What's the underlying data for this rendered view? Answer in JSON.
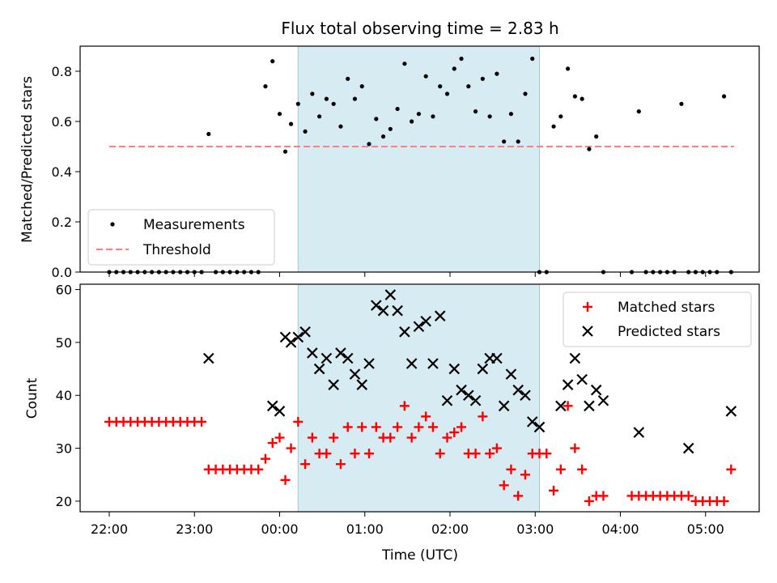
{
  "title": "Flux total observing time = 2.83 h",
  "colors": {
    "measurement": "#000000",
    "threshold": "#ff7f7f",
    "matched": "#ff0000",
    "predicted": "#000000",
    "shade": "#add8e6"
  },
  "chart_data": [
    {
      "type": "scatter",
      "ylabel": "Matched/Predicted stars",
      "ylim": [
        0,
        0.9
      ],
      "yticks": [
        "0.0",
        "0.2",
        "0.4",
        "0.6",
        "0.8"
      ],
      "legend": {
        "placement": "lower-left",
        "measurements": "Measurements",
        "threshold": "Threshold"
      },
      "threshold": {
        "value": 0.5,
        "x_start": "22:00",
        "x_end": "05:20"
      },
      "shaded_region": {
        "x_start": "00:13",
        "x_end": "03:03"
      },
      "series": [
        {
          "name": "Measurements",
          "x": [
            "22:00",
            "22:05",
            "22:10",
            "22:15",
            "22:20",
            "22:25",
            "22:30",
            "22:35",
            "22:40",
            "22:45",
            "22:50",
            "22:55",
            "23:00",
            "23:05",
            "23:10",
            "23:15",
            "23:20",
            "23:25",
            "23:30",
            "23:35",
            "23:40",
            "23:45",
            "23:50",
            "23:55",
            "00:00",
            "00:04",
            "00:08",
            "00:13",
            "00:18",
            "00:23",
            "00:28",
            "00:33",
            "00:38",
            "00:43",
            "00:48",
            "00:53",
            "00:58",
            "01:03",
            "01:08",
            "01:13",
            "01:18",
            "01:23",
            "01:28",
            "01:33",
            "01:38",
            "01:43",
            "01:48",
            "01:53",
            "01:58",
            "02:03",
            "02:08",
            "02:13",
            "02:18",
            "02:23",
            "02:28",
            "02:33",
            "02:38",
            "02:43",
            "02:48",
            "02:53",
            "02:58",
            "03:03",
            "03:08",
            "03:13",
            "03:18",
            "03:23",
            "03:28",
            "03:33",
            "03:38",
            "03:43",
            "03:48",
            "04:08",
            "04:13",
            "04:18",
            "04:23",
            "04:28",
            "04:33",
            "04:38",
            "04:43",
            "04:48",
            "04:53",
            "04:58",
            "05:03",
            "05:08",
            "05:13",
            "05:18"
          ],
          "y": [
            0,
            0,
            0,
            0,
            0,
            0,
            0,
            0,
            0,
            0,
            0,
            0,
            0,
            0,
            0.55,
            0,
            0,
            0,
            0,
            0,
            0,
            0,
            0.74,
            0.84,
            0.63,
            0.48,
            0.59,
            0.67,
            0.56,
            0.71,
            0.62,
            0.69,
            0.67,
            0.58,
            0.77,
            0.69,
            0.74,
            0.51,
            0.61,
            0.54,
            0.57,
            0.65,
            0.83,
            0.6,
            0.63,
            0.78,
            0.62,
            0.74,
            0.71,
            0.81,
            0.85,
            0.74,
            0.64,
            0.77,
            0.62,
            0.79,
            0.52,
            0.63,
            0.52,
            0.71,
            0.85,
            0,
            0,
            0.58,
            0.62,
            0.81,
            0.7,
            0.69,
            0.49,
            0.54,
            0,
            0,
            0.64,
            0,
            0,
            0,
            0,
            0,
            0.67,
            0,
            0,
            0,
            0,
            0,
            0.7,
            0
          ]
        }
      ]
    },
    {
      "type": "scatter",
      "xlabel": "Time (UTC)",
      "ylabel": "Count",
      "ylim": [
        18,
        61
      ],
      "yticks": [
        "20",
        "30",
        "40",
        "50",
        "60"
      ],
      "xticks": [
        "22:00",
        "23:00",
        "00:00",
        "01:00",
        "02:00",
        "03:00",
        "04:00",
        "05:00"
      ],
      "legend": {
        "placement": "top-right"
      },
      "shaded_region": {
        "x_start": "00:13",
        "x_end": "03:03"
      },
      "series": [
        {
          "name": "Matched stars",
          "x": [
            "22:00",
            "22:05",
            "22:10",
            "22:15",
            "22:20",
            "22:25",
            "22:30",
            "22:35",
            "22:40",
            "22:45",
            "22:50",
            "22:55",
            "23:00",
            "23:05",
            "23:10",
            "23:15",
            "23:20",
            "23:25",
            "23:30",
            "23:35",
            "23:40",
            "23:45",
            "23:50",
            "23:55",
            "00:00",
            "00:04",
            "00:08",
            "00:13",
            "00:18",
            "00:23",
            "00:28",
            "00:33",
            "00:38",
            "00:43",
            "00:48",
            "00:53",
            "00:58",
            "01:03",
            "01:08",
            "01:13",
            "01:18",
            "01:23",
            "01:28",
            "01:33",
            "01:38",
            "01:43",
            "01:48",
            "01:53",
            "01:58",
            "02:03",
            "02:08",
            "02:13",
            "02:18",
            "02:23",
            "02:28",
            "02:33",
            "02:38",
            "02:43",
            "02:48",
            "02:53",
            "02:58",
            "03:03",
            "03:08",
            "03:13",
            "03:18",
            "03:23",
            "03:28",
            "03:33",
            "03:38",
            "03:43",
            "03:48",
            "04:08",
            "04:13",
            "04:18",
            "04:23",
            "04:28",
            "04:33",
            "04:38",
            "04:43",
            "04:48",
            "04:53",
            "04:58",
            "05:03",
            "05:08",
            "05:13",
            "05:18"
          ],
          "y": [
            35,
            35,
            35,
            35,
            35,
            35,
            35,
            35,
            35,
            35,
            35,
            35,
            35,
            35,
            26,
            26,
            26,
            26,
            26,
            26,
            26,
            26,
            28,
            31,
            32,
            24,
            30,
            35,
            27,
            32,
            29,
            29,
            32,
            27,
            34,
            29,
            34,
            29,
            34,
            32,
            32,
            34,
            38,
            32,
            34,
            36,
            34,
            29,
            32,
            33,
            34,
            29,
            29,
            36,
            29,
            30,
            23,
            26,
            21,
            25,
            29,
            29,
            29,
            22,
            26,
            38,
            30,
            26,
            20,
            21,
            21,
            21,
            21,
            21,
            21,
            21,
            21,
            21,
            21,
            21,
            20,
            20,
            20,
            20,
            20,
            26
          ]
        },
        {
          "name": "Predicted stars",
          "x": [
            "23:10",
            "23:55",
            "00:00",
            "00:04",
            "00:08",
            "00:13",
            "00:18",
            "00:23",
            "00:28",
            "00:33",
            "00:38",
            "00:43",
            "00:48",
            "00:53",
            "00:58",
            "01:03",
            "01:08",
            "01:13",
            "01:18",
            "01:23",
            "01:28",
            "01:33",
            "01:38",
            "01:43",
            "01:48",
            "01:53",
            "01:58",
            "02:03",
            "02:08",
            "02:13",
            "02:18",
            "02:23",
            "02:28",
            "02:33",
            "02:38",
            "02:43",
            "02:48",
            "02:53",
            "02:58",
            "03:03",
            "03:18",
            "03:23",
            "03:28",
            "03:33",
            "03:38",
            "03:43",
            "03:48",
            "04:13",
            "04:48",
            "05:18"
          ],
          "y": [
            47,
            38,
            37,
            51,
            50,
            51,
            52,
            48,
            45,
            47,
            42,
            48,
            47,
            44,
            42,
            46,
            57,
            56,
            59,
            56,
            52,
            46,
            53,
            54,
            46,
            55,
            39,
            45,
            41,
            40,
            39,
            45,
            47,
            47,
            38,
            44,
            41,
            40,
            35,
            34,
            38,
            42,
            47,
            43,
            38,
            41,
            39,
            33,
            30,
            37
          ]
        }
      ]
    }
  ]
}
